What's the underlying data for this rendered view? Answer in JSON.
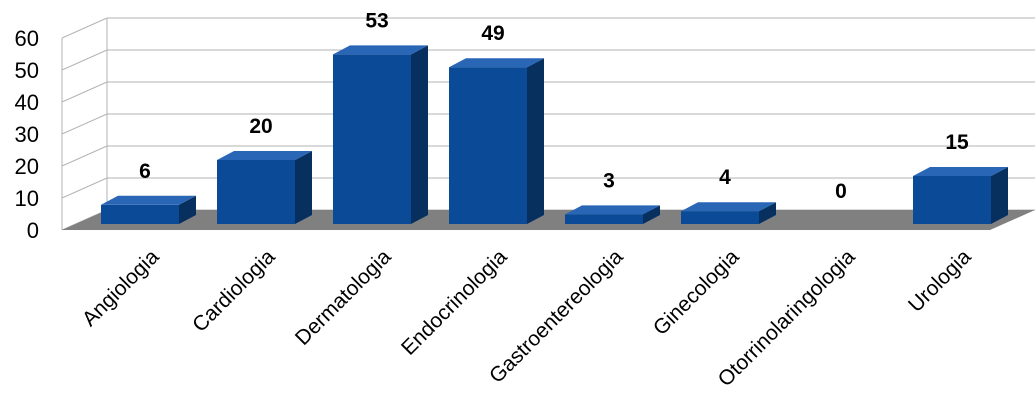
{
  "chart_data": {
    "type": "bar",
    "style": "3d-column",
    "categories": [
      "Angiologia",
      "Cardiologia",
      "Dermatologia",
      "Endocrinologia",
      "Gastroentereologia",
      "Ginecologia",
      "Otorrinolaringologia",
      "Urologia"
    ],
    "values": [
      6,
      20,
      53,
      49,
      3,
      4,
      0,
      15
    ],
    "ylim": [
      0,
      60
    ],
    "yticks": [
      0,
      10,
      20,
      30,
      40,
      50,
      60
    ],
    "grid": true,
    "legend": "none",
    "colors": {
      "bar_front": "#0b4a96",
      "bar_top": "#2a66b6",
      "bar_side": "#07305f",
      "floor": "#808080",
      "grid": "#b3b3b3"
    }
  }
}
